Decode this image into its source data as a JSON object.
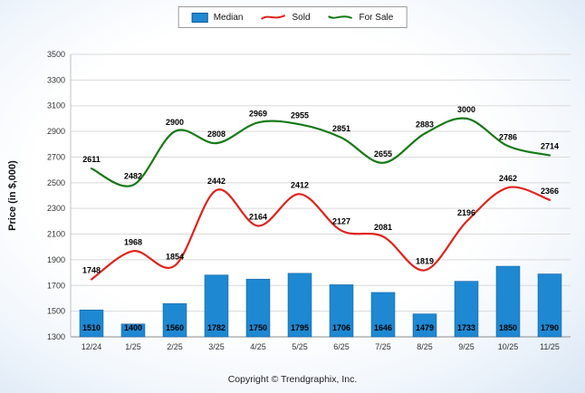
{
  "chart_data": {
    "type": "combo",
    "title": "",
    "categories": [
      "12/24",
      "1/25",
      "2/25",
      "3/25",
      "4/25",
      "5/25",
      "6/25",
      "7/25",
      "8/25",
      "9/25",
      "10/25",
      "11/25"
    ],
    "series": [
      {
        "name": "Median",
        "kind": "bar",
        "color": "#1e88d2",
        "values": [
          1510,
          1400,
          1560,
          1782,
          1750,
          1795,
          1706,
          1646,
          1479,
          1733,
          1850,
          1790
        ]
      },
      {
        "name": "Sold",
        "kind": "line",
        "color": "#e0231c",
        "values": [
          1748,
          1968,
          1854,
          2442,
          2164,
          2412,
          2127,
          2081,
          1819,
          2196,
          2462,
          2366
        ]
      },
      {
        "name": "For Sale",
        "kind": "line",
        "color": "#157a15",
        "values": [
          2611,
          2482,
          2900,
          2808,
          2969,
          2955,
          2851,
          2655,
          2883,
          3000,
          2786,
          2714
        ]
      }
    ],
    "xlabel": "",
    "ylabel": "Price (in $,000)",
    "ylim": [
      1300,
      3500
    ],
    "yticks": [
      1300,
      1500,
      1700,
      1900,
      2100,
      2300,
      2500,
      2700,
      2900,
      3100,
      3300,
      3500
    ],
    "grid": true,
    "legend_position": "top"
  },
  "footer": {
    "copyright": "Copyright © Trendgraphix, Inc."
  }
}
